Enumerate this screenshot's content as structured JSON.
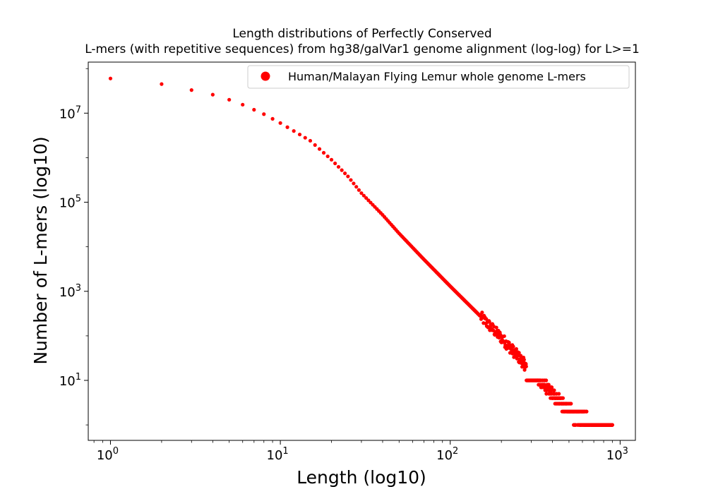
{
  "chart_data": {
    "type": "scatter",
    "title_lines": [
      "Length distributions of Perfectly Conserved",
      "L-mers (with repetitive sequences) from hg38/galVar1 genome alignment (log-log) for L>=1"
    ],
    "xlabel": "Length (log10)",
    "ylabel": "Number of L-mers (log10)",
    "x_scale": "log",
    "y_scale": "log",
    "xlim": [
      0.74,
      1230
    ],
    "ylim": [
      0.45,
      140000000
    ],
    "x_ticks": [
      {
        "value": 1,
        "base": "10",
        "exp": "0"
      },
      {
        "value": 10,
        "base": "10",
        "exp": "1"
      },
      {
        "value": 100,
        "base": "10",
        "exp": "2"
      },
      {
        "value": 1000,
        "base": "10",
        "exp": "3"
      }
    ],
    "y_ticks": [
      {
        "value": 10,
        "base": "10",
        "exp": "1"
      },
      {
        "value": 1000,
        "base": "10",
        "exp": "3"
      },
      {
        "value": 100000,
        "base": "10",
        "exp": "5"
      },
      {
        "value": 10000000,
        "base": "10",
        "exp": "7"
      }
    ],
    "grid": false,
    "legend_position": "top-right",
    "series": [
      {
        "name": "Human/Malayan Flying Lemur whole genome L-mers",
        "color": "#ff0000",
        "anchors": [
          [
            1,
            60000000
          ],
          [
            2,
            45000000
          ],
          [
            3,
            33000000
          ],
          [
            4,
            26000000
          ],
          [
            5,
            20000000
          ],
          [
            6,
            15500000
          ],
          [
            8,
            9500000
          ],
          [
            10,
            6000000
          ],
          [
            15,
            2400000
          ],
          [
            20,
            900000
          ],
          [
            25,
            380000
          ],
          [
            30,
            160000
          ],
          [
            40,
            52000
          ],
          [
            50,
            20000
          ],
          [
            70,
            5200
          ],
          [
            100,
            1300
          ],
          [
            150,
            280
          ],
          [
            200,
            90
          ],
          [
            250,
            35
          ],
          [
            300,
            15
          ],
          [
            400,
            5
          ],
          [
            500,
            2
          ],
          [
            700,
            1
          ],
          [
            900,
            1
          ]
        ],
        "x_range": [
          1,
          900
        ]
      }
    ]
  },
  "colors": {
    "marker": "#ff0000",
    "axis": "#000000",
    "background": "#ffffff"
  }
}
